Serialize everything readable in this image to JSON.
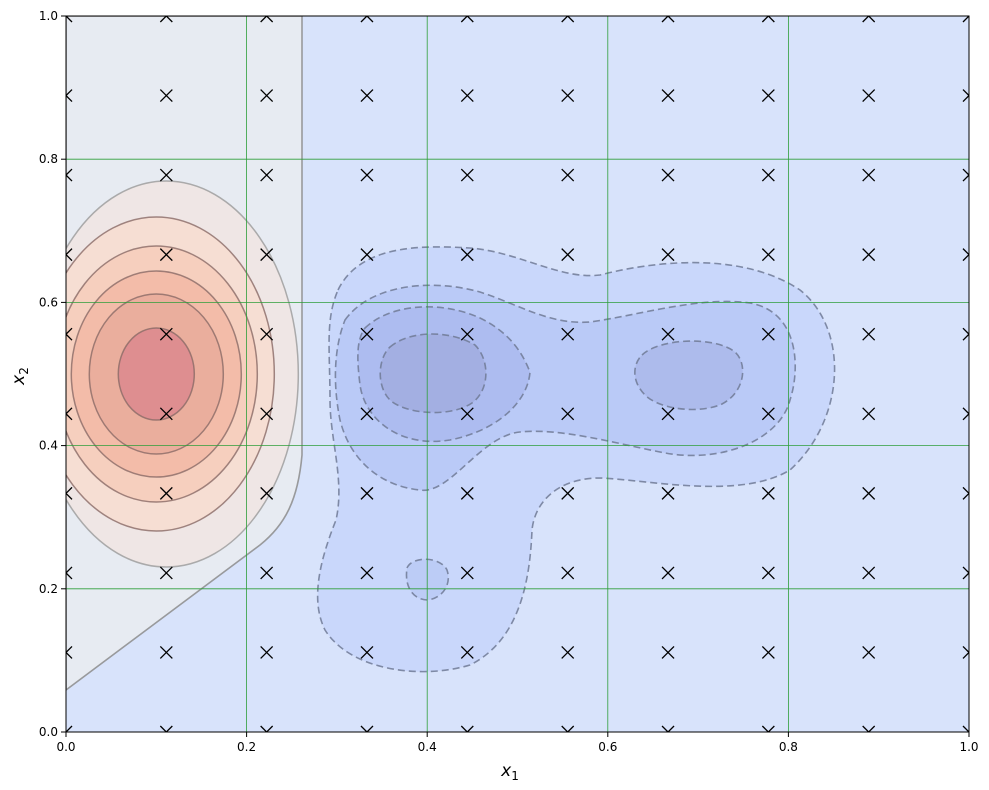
{
  "chart_data": {
    "type": "contour",
    "xlabel": "x",
    "xlabel_subscript": "1",
    "ylabel": "x",
    "ylabel_subscript": "2",
    "xlim": [
      0,
      1
    ],
    "ylim": [
      0,
      1
    ],
    "xticks": [
      0.0,
      0.2,
      0.4,
      0.6,
      0.8,
      1.0
    ],
    "yticks": [
      0.0,
      0.2,
      0.4,
      0.6,
      0.8,
      1.0
    ],
    "xtick_labels": [
      "0.0",
      "0.2",
      "0.4",
      "0.6",
      "0.8",
      "1.0"
    ],
    "ytick_labels": [
      "0.0",
      "0.2",
      "0.4",
      "0.6",
      "0.8",
      "1.0"
    ],
    "grid": true,
    "grid_color": "#2e9e3a",
    "colors": {
      "positive_fill": "#f2a890",
      "positive_peak": "#dd8c8f",
      "negative_fill": "#d6e2fb",
      "negative_peak": "#a2aee0",
      "contour_line": "#707070",
      "marker": "#000000"
    },
    "regions": [
      {
        "sign": "positive",
        "center": [
          0.1,
          0.5
        ],
        "peak_level": 6,
        "line_style": "solid"
      },
      {
        "sign": "negative",
        "center": [
          0.41,
          0.5
        ],
        "peak_level": 4,
        "line_style": "dashed"
      },
      {
        "sign": "negative",
        "center": [
          0.69,
          0.5
        ],
        "peak_level": 4,
        "line_style": "dashed"
      },
      {
        "sign": "negative",
        "center": [
          0.4,
          0.21
        ],
        "peak_level": 2,
        "line_style": "dashed"
      }
    ],
    "zero_contour": "boundary from (0.0, 0.06) rising to (0.26, 0.32), then vertical near x=0.26 up to 1.0",
    "marker_symbol": "x",
    "grid_points_x": [
      0.0,
      0.1111,
      0.2222,
      0.3333,
      0.4444,
      0.5556,
      0.6667,
      0.7778,
      0.8889,
      1.0
    ],
    "grid_points_y": [
      0.0,
      0.1111,
      0.2222,
      0.3333,
      0.4444,
      0.5556,
      0.6667,
      0.7778,
      0.8889,
      1.0
    ]
  }
}
